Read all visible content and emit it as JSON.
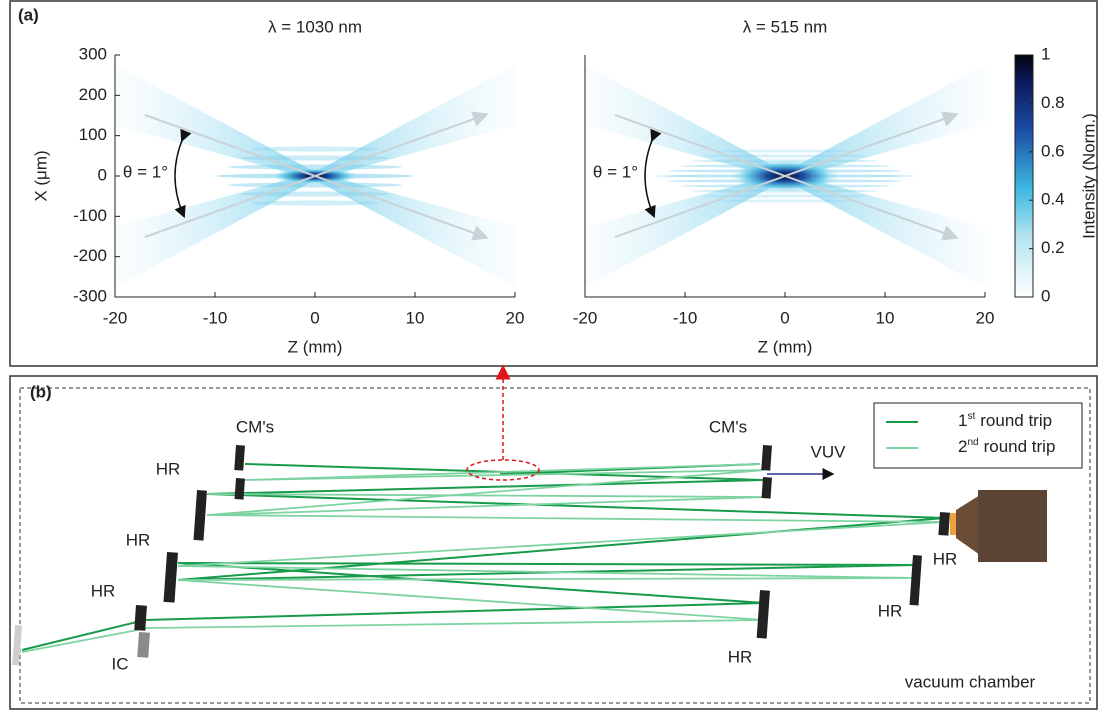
{
  "panel_a": {
    "label": "(a)",
    "charts": [
      {
        "type": "heatmap",
        "title": "λ = 1030 nm",
        "xlabel": "Z (mm)",
        "ylabel": "X (μm)",
        "annotation": "θ = 1°",
        "xlim": [
          -20,
          20
        ],
        "xticks": [
          -20,
          -10,
          0,
          10,
          20
        ],
        "ylim": [
          -300,
          300
        ],
        "yticks": [
          -300,
          -200,
          -100,
          0,
          100,
          200,
          300
        ]
      },
      {
        "type": "heatmap",
        "title": "λ = 515 nm",
        "xlabel": "Z (mm)",
        "annotation": "θ = 1°",
        "xlim": [
          -20,
          20
        ],
        "xticks": [
          -20,
          -10,
          0,
          10,
          20
        ],
        "ylim": [
          -300,
          300
        ]
      }
    ],
    "colorbar": {
      "label": "Intensity (Norm.)",
      "lim": [
        0,
        1
      ],
      "ticks": [
        0,
        0.2,
        0.4,
        0.6,
        0.8,
        1
      ]
    }
  },
  "panel_b": {
    "label": "(b)",
    "legend": [
      {
        "number": "1",
        "suffix": "st",
        "text": "round trip",
        "color": "#179a4a"
      },
      {
        "number": "2",
        "suffix": "nd",
        "text": "round trip",
        "color": "#7fd3a2"
      }
    ],
    "labels": [
      "CM's",
      "CM's",
      "VUV",
      "HR",
      "HR",
      "HR",
      "HR",
      "HR",
      "HR",
      "IC",
      "vacuum chamber"
    ]
  }
}
